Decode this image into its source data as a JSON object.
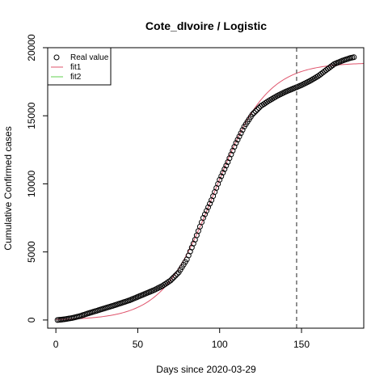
{
  "chart_data": {
    "type": "scatter",
    "title": "Cote_dIvoire / Logistic",
    "xlabel": "Days since 2020-03-29",
    "ylabel": "Cumulative Confirmed cases",
    "xlim": [
      -5,
      188
    ],
    "ylim": [
      -600,
      20000
    ],
    "x_ticks": [
      0,
      50,
      100,
      150
    ],
    "y_ticks": [
      0,
      5000,
      10000,
      15000,
      20000
    ],
    "grid": false,
    "legend_position": "top-left",
    "legend": [
      "Real value",
      "fit1",
      "fit2"
    ],
    "vline_x": 147,
    "colors": {
      "real": "#000000",
      "fit1": "#DF536B",
      "fit2": "#61D04F",
      "vline": "#555555"
    },
    "series": [
      {
        "name": "Real value",
        "kind": "points",
        "anchors": [
          [
            1,
            0
          ],
          [
            5,
            50
          ],
          [
            10,
            150
          ],
          [
            15,
            300
          ],
          [
            20,
            500
          ],
          [
            25,
            680
          ],
          [
            30,
            870
          ],
          [
            35,
            1050
          ],
          [
            40,
            1250
          ],
          [
            45,
            1450
          ],
          [
            50,
            1700
          ],
          [
            55,
            1950
          ],
          [
            60,
            2200
          ],
          [
            65,
            2500
          ],
          [
            70,
            2900
          ],
          [
            75,
            3500
          ],
          [
            80,
            4450
          ],
          [
            85,
            5900
          ],
          [
            90,
            7500
          ],
          [
            95,
            8800
          ],
          [
            100,
            10300
          ],
          [
            105,
            11600
          ],
          [
            110,
            13000
          ],
          [
            115,
            14200
          ],
          [
            120,
            15100
          ],
          [
            125,
            15700
          ],
          [
            130,
            16100
          ],
          [
            135,
            16450
          ],
          [
            140,
            16750
          ],
          [
            145,
            17000
          ],
          [
            150,
            17250
          ],
          [
            155,
            17550
          ],
          [
            160,
            17900
          ],
          [
            165,
            18350
          ],
          [
            170,
            18800
          ],
          [
            175,
            19050
          ],
          [
            180,
            19250
          ],
          [
            182,
            19300
          ]
        ]
      },
      {
        "name": "fit1",
        "kind": "logistic",
        "K": 18900,
        "r": 0.063,
        "x0": 97,
        "x_range": [
          0,
          188
        ]
      },
      {
        "name": "fit2",
        "kind": "line",
        "values": []
      }
    ]
  }
}
